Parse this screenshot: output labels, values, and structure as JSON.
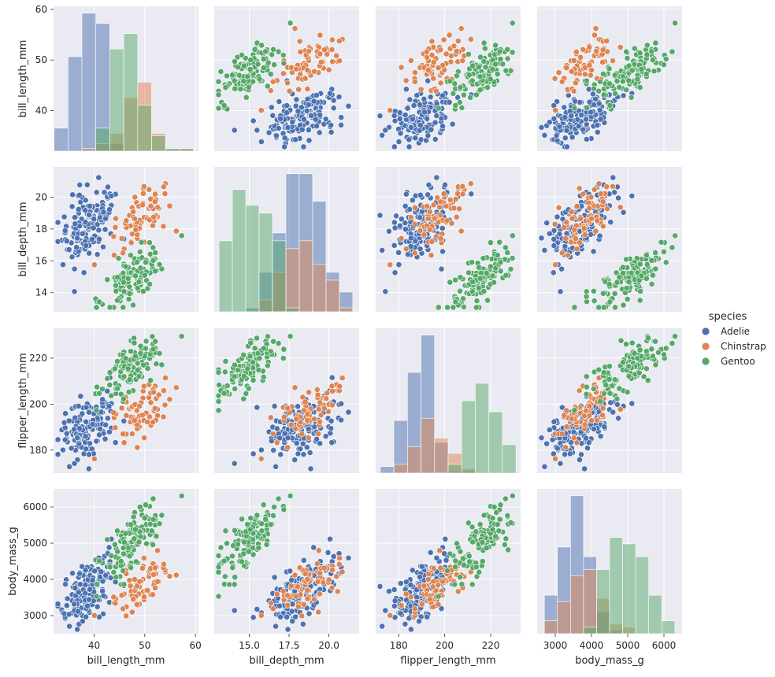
{
  "legend": {
    "title": "species",
    "items": [
      {
        "label": "Adelie",
        "color": "#4c72b0"
      },
      {
        "label": "Chinstrap",
        "color": "#dd8452"
      },
      {
        "label": "Gentoo",
        "color": "#55a868"
      }
    ]
  },
  "chart_data": {
    "type": "scatter",
    "subtype": "pairplot",
    "grid": true,
    "legend_placement": "right",
    "variables": [
      "bill_length_mm",
      "bill_depth_mm",
      "flipper_length_mm",
      "body_mass_g"
    ],
    "axes": {
      "bill_length_mm": {
        "lim": [
          32,
          60.6
        ],
        "ticks": [
          40,
          50,
          60
        ],
        "tick_labels": [
          "40",
          "50",
          "60"
        ]
      },
      "bill_depth_mm": {
        "lim": [
          12.8,
          21.9
        ],
        "ticks": [
          14,
          16,
          18,
          20
        ],
        "tick_labels": [
          "14",
          "16",
          "18",
          "20"
        ],
        "x_ticks": [
          15,
          17.5,
          20
        ],
        "x_tick_labels": [
          "15.0",
          "17.5",
          "20.0"
        ]
      },
      "flipper_length_mm": {
        "lim": [
          170,
          233
        ],
        "ticks": [
          180,
          200,
          220
        ],
        "tick_labels": [
          "180",
          "200",
          "220"
        ]
      },
      "body_mass_g": {
        "lim": [
          2500,
          6500
        ],
        "ticks": [
          3000,
          4000,
          5000,
          6000
        ],
        "tick_labels": [
          "3000",
          "4000",
          "5000",
          "6000"
        ]
      }
    },
    "series": [
      {
        "name": "Adelie",
        "color": "#4c72b0",
        "means": {
          "bill_length_mm": 38.8,
          "bill_depth_mm": 18.3,
          "flipper_length_mm": 190,
          "body_mass_g": 3700
        },
        "hist": {
          "bill_length_mm": {
            "edges": [
              32.1,
              34.85,
              37.6,
              40.35,
              43.1,
              45.85,
              48.6,
              51.35,
              54.1,
              56.85,
              59.6
            ],
            "counts": [
              9,
              37,
              54,
              50,
              3,
              0,
              0,
              0,
              0,
              0
            ]
          },
          "bill_depth_mm": {
            "edges": [
              13.1,
              13.94,
              14.78,
              15.62,
              16.46,
              17.3,
              18.14,
              18.98,
              19.82,
              20.66,
              21.5
            ],
            "counts": [
              0,
              0,
              1,
              10,
              20,
              35,
              35,
              28,
              10,
              5
            ]
          },
          "flipper_length_mm": {
            "edges": [
              172,
              177.9,
              183.8,
              189.7,
              195.6,
              201.5,
              207.4,
              213.3,
              219.2,
              225.1,
              231
            ],
            "counts": [
              3,
              24,
              46,
              63,
              14,
              1,
              1,
              0,
              0,
              0
            ]
          },
          "body_mass_g": {
            "edges": [
              2700,
              3060,
              3420,
              3780,
              4140,
              4500,
              4860,
              5220,
              5580,
              5940,
              6300
            ],
            "counts": [
              12,
              27,
              43,
              24,
              7,
              1,
              0,
              0,
              0,
              0
            ]
          }
        }
      },
      {
        "name": "Chinstrap",
        "color": "#dd8452",
        "means": {
          "bill_length_mm": 48.8,
          "bill_depth_mm": 18.4,
          "flipper_length_mm": 196,
          "body_mass_g": 3730
        },
        "hist": {
          "bill_length_mm": {
            "edges": [
              32.1,
              34.85,
              37.6,
              40.35,
              43.1,
              45.85,
              48.6,
              51.35,
              54.1,
              56.85,
              59.6
            ],
            "counts": [
              0,
              0,
              1,
              3,
              7,
              21,
              27,
              7,
              1,
              1
            ]
          },
          "bill_depth_mm": {
            "edges": [
              13.1,
              13.94,
              14.78,
              15.62,
              16.46,
              17.3,
              18.14,
              18.98,
              19.82,
              20.66,
              21.5
            ],
            "counts": [
              0,
              0,
              0,
              3,
              10,
              16,
              18,
              12,
              8,
              1
            ]
          },
          "flipper_length_mm": {
            "edges": [
              172,
              177.9,
              183.8,
              189.7,
              195.6,
              201.5,
              207.4,
              213.3,
              219.2,
              225.1,
              231
            ],
            "counts": [
              0,
              4,
              12,
              25,
              16,
              9,
              2,
              0,
              0,
              0
            ]
          },
          "body_mass_g": {
            "edges": [
              2700,
              3060,
              3420,
              3780,
              4140,
              4500,
              4860,
              5220,
              5580,
              5940,
              6300
            ],
            "counts": [
              4,
              10,
              18,
              20,
              11,
              3,
              2,
              0,
              0,
              0
            ]
          }
        }
      },
      {
        "name": "Gentoo",
        "color": "#55a868",
        "means": {
          "bill_length_mm": 47.5,
          "bill_depth_mm": 15.0,
          "flipper_length_mm": 217,
          "body_mass_g": 5080
        },
        "hist": {
          "bill_length_mm": {
            "edges": [
              32.1,
              34.85,
              37.6,
              40.35,
              43.1,
              45.85,
              48.6,
              51.35,
              54.1,
              56.85,
              59.6
            ],
            "counts": [
              0,
              0,
              0,
              9,
              40,
              46,
              18,
              6,
              1,
              1
            ]
          },
          "bill_depth_mm": {
            "edges": [
              13.1,
              13.94,
              14.78,
              15.62,
              16.46,
              17.3,
              18.14,
              18.98,
              19.82,
              20.66,
              21.5
            ],
            "counts": [
              18,
              31,
              27,
              25,
              18,
              1,
              0,
              0,
              0,
              0
            ]
          },
          "flipper_length_mm": {
            "edges": [
              172,
              177.9,
              183.8,
              189.7,
              195.6,
              201.5,
              207.4,
              213.3,
              219.2,
              225.1,
              231
            ],
            "counts": [
              0,
              0,
              0,
              0,
              0,
              4,
              33,
              41,
              28,
              13
            ]
          },
          "body_mass_g": {
            "edges": [
              2700,
              3060,
              3420,
              3780,
              4140,
              4500,
              4860,
              5220,
              5580,
              5940,
              6300
            ],
            "counts": [
              0,
              0,
              0,
              2,
              20,
              30,
              28,
              24,
              12,
              4
            ]
          }
        }
      }
    ]
  }
}
